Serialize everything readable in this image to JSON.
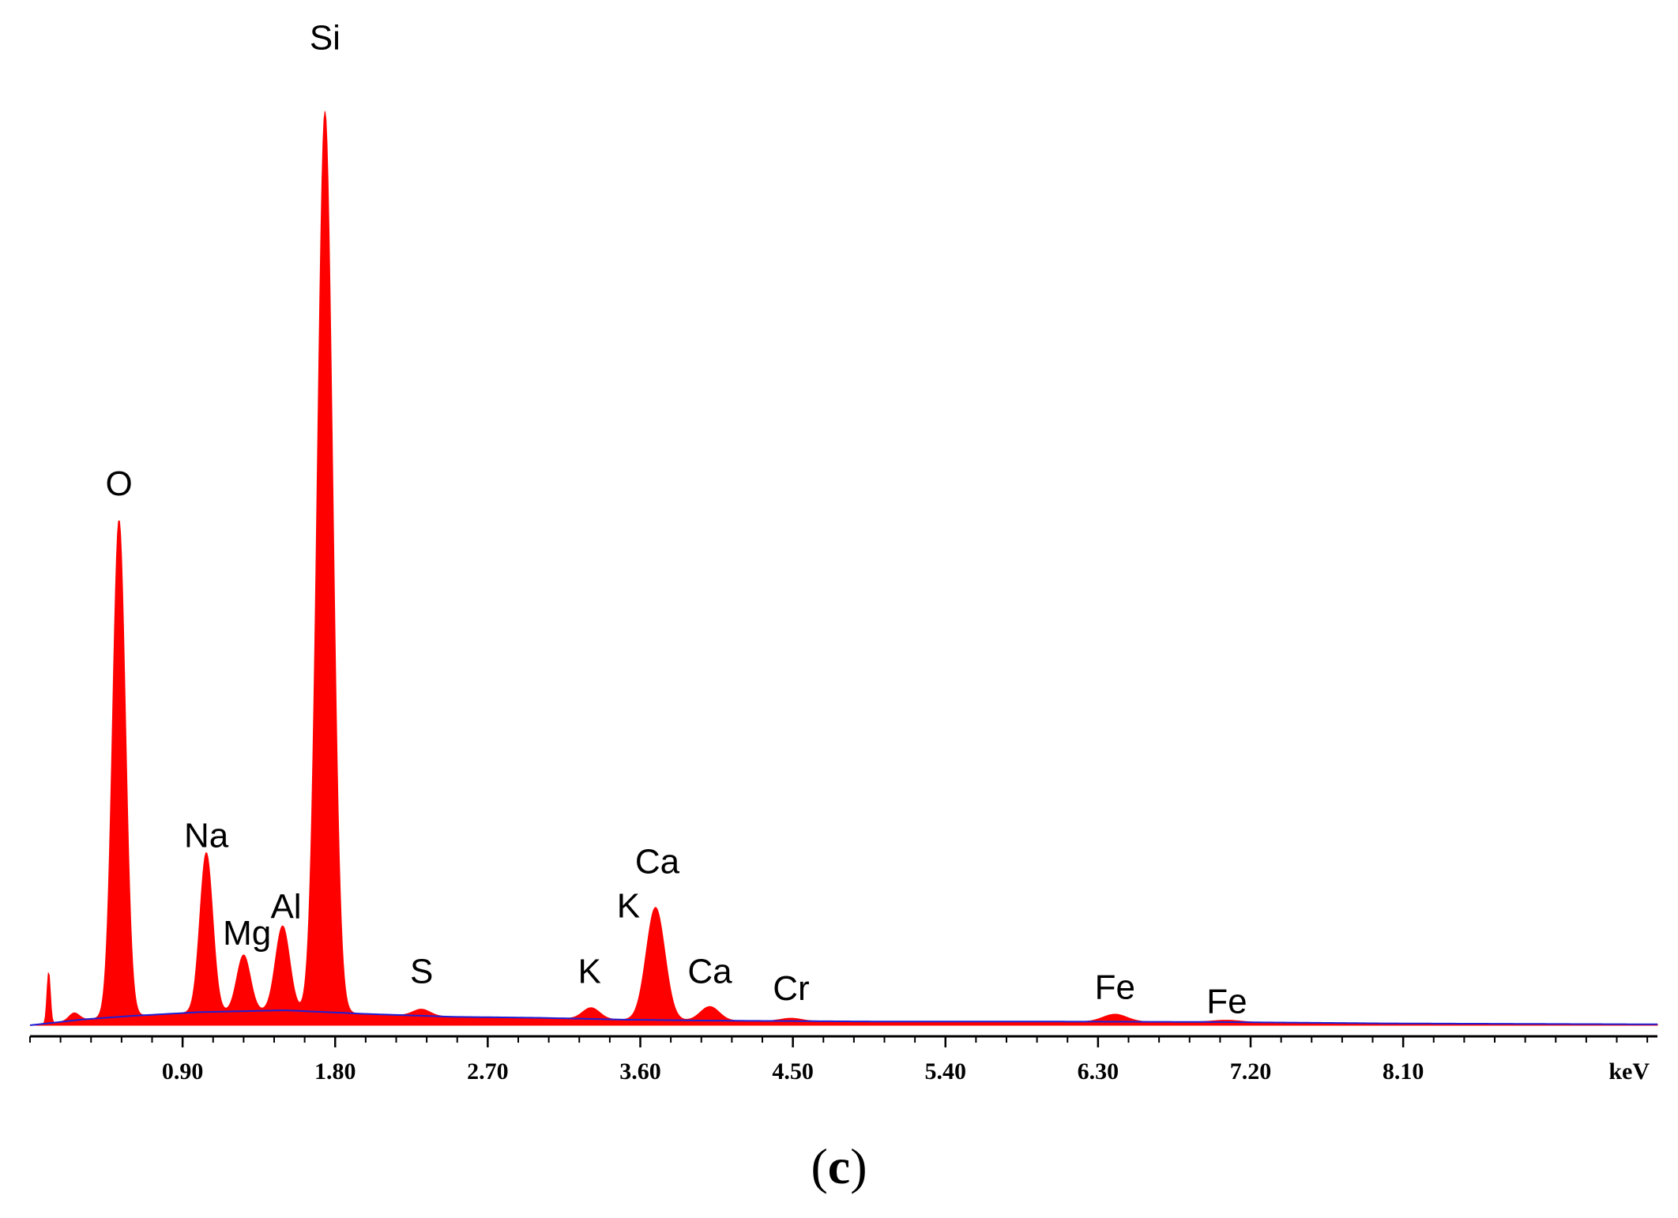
{
  "panel_label": {
    "open": "(",
    "letter": "c",
    "close": ")"
  },
  "chart_data": {
    "type": "area",
    "xlabel": "keV",
    "ylabel": "",
    "xlim": [
      0,
      9.6
    ],
    "ylim": [
      0,
      100
    ],
    "x_ticks": [
      0.9,
      1.8,
      2.7,
      3.6,
      4.5,
      5.4,
      6.3,
      7.2,
      8.1
    ],
    "x_tick_labels": [
      "0.90",
      "1.80",
      "2.70",
      "3.60",
      "4.50",
      "5.40",
      "6.30",
      "7.20",
      "8.10"
    ],
    "x_unit_label": "keV",
    "grid": false,
    "colors": {
      "spectrum": "#ff0000",
      "background": "#1f1fd6",
      "axis": "#000000"
    },
    "series": [
      {
        "name": "spectrum",
        "peaks": [
          {
            "x": 0.11,
            "height": 5.5,
            "width": 0.01
          },
          {
            "x": 0.26,
            "height": 0.8,
            "width": 0.03
          },
          {
            "x": 0.525,
            "height": 53.0,
            "width": 0.038
          },
          {
            "x": 1.04,
            "height": 17.0,
            "width": 0.038
          },
          {
            "x": 1.26,
            "height": 6.0,
            "width": 0.04
          },
          {
            "x": 1.49,
            "height": 9.0,
            "width": 0.042
          },
          {
            "x": 1.74,
            "height": 96.0,
            "width": 0.045
          },
          {
            "x": 2.31,
            "height": 0.7,
            "width": 0.05
          },
          {
            "x": 3.31,
            "height": 1.2,
            "width": 0.05
          },
          {
            "x": 3.69,
            "height": 12.0,
            "width": 0.055
          },
          {
            "x": 4.01,
            "height": 1.5,
            "width": 0.055
          },
          {
            "x": 4.49,
            "height": 0.3,
            "width": 0.06
          },
          {
            "x": 6.4,
            "height": 0.8,
            "width": 0.07
          },
          {
            "x": 7.06,
            "height": 0.2,
            "width": 0.08
          }
        ]
      },
      {
        "name": "background",
        "points": [
          [
            0.0,
            0.0
          ],
          [
            0.3,
            0.6
          ],
          [
            0.6,
            1.0
          ],
          [
            1.0,
            1.4
          ],
          [
            1.5,
            1.6
          ],
          [
            2.0,
            1.2
          ],
          [
            2.5,
            0.9
          ],
          [
            3.0,
            0.8
          ],
          [
            3.5,
            0.6
          ],
          [
            4.0,
            0.5
          ],
          [
            5.0,
            0.4
          ],
          [
            6.0,
            0.4
          ],
          [
            7.0,
            0.35
          ],
          [
            8.0,
            0.2
          ],
          [
            9.6,
            0.1
          ]
        ]
      }
    ],
    "peak_labels": [
      {
        "text": "O",
        "x": 0.525,
        "y": 56.5
      },
      {
        "text": "Na",
        "x": 1.04,
        "y": 19.0
      },
      {
        "text": "Mg",
        "x": 1.28,
        "y": 8.6
      },
      {
        "text": "Al",
        "x": 1.51,
        "y": 11.4
      },
      {
        "text": "Si",
        "x": 1.74,
        "y": 104.0
      },
      {
        "text": "S",
        "x": 2.31,
        "y": 4.5
      },
      {
        "text": "K",
        "x": 3.3,
        "y": 4.5
      },
      {
        "text": "K",
        "x": 3.53,
        "y": 11.5
      },
      {
        "text": "Ca",
        "x": 3.7,
        "y": 16.2
      },
      {
        "text": "Ca",
        "x": 4.01,
        "y": 4.5
      },
      {
        "text": "Cr",
        "x": 4.49,
        "y": 2.7
      },
      {
        "text": "Fe",
        "x": 6.4,
        "y": 2.8
      },
      {
        "text": "Fe",
        "x": 7.06,
        "y": 1.3
      }
    ]
  }
}
